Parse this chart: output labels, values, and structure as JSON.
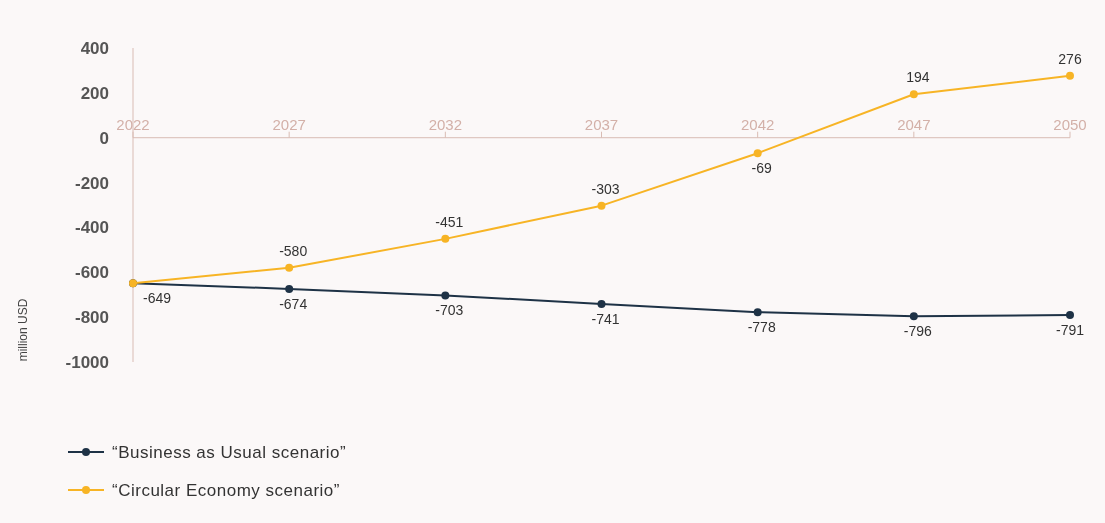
{
  "chart_data": {
    "type": "line",
    "ylabel": "million USD",
    "categories": [
      "2022",
      "2027",
      "2032",
      "2037",
      "2042",
      "2047",
      "2050"
    ],
    "ylim": [
      -1000,
      400
    ],
    "yticks": [
      -1000,
      -800,
      -600,
      -400,
      -200,
      0,
      200,
      400
    ],
    "series": [
      {
        "name": "“Business as Usual scenario”",
        "color": "#1e3246",
        "values": [
          -649,
          -674,
          -703,
          -741,
          -778,
          -796,
          -791
        ],
        "value_labels": [
          "-649",
          "-674",
          "-703",
          "-741",
          "-778",
          "-796",
          "-791"
        ]
      },
      {
        "name": "“Circular Economy scenario”",
        "color": "#f7b425",
        "values": [
          -649,
          -580,
          -451,
          -303,
          -69,
          194,
          276
        ],
        "value_labels": [
          null,
          "-580",
          "-451",
          "-303",
          "-69",
          "194",
          "276"
        ]
      }
    ],
    "marker": "circle",
    "legend": "bottom left",
    "grid": false
  }
}
